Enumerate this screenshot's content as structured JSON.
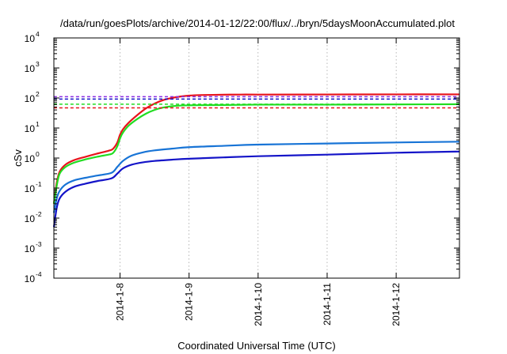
{
  "chart_data": {
    "type": "line",
    "title": "/data/run/goesPlots/archive/2014-01-12/22:00/flux/../bryn/5daysMoonAccumulated.plot",
    "xlabel": "Coordinated Universal Time (UTC)",
    "ylabel": "cSv",
    "y_scale": "log",
    "ylim": [
      0.0001,
      10000
    ],
    "y_ticks": [
      {
        "base": "10",
        "exp": "-4",
        "value": 0.0001
      },
      {
        "base": "10",
        "exp": "-3",
        "value": 0.001
      },
      {
        "base": "10",
        "exp": "-2",
        "value": 0.01
      },
      {
        "base": "10",
        "exp": "-1",
        "value": 0.1
      },
      {
        "base": "10",
        "exp": "0",
        "value": 1
      },
      {
        "base": "10",
        "exp": "1",
        "value": 10
      },
      {
        "base": "10",
        "exp": "2",
        "value": 100
      },
      {
        "base": "10",
        "exp": "3",
        "value": 1000
      },
      {
        "base": "10",
        "exp": "4",
        "value": 10000
      }
    ],
    "xlim": [
      "2014-01-07 01:00",
      "2014-01-12 22:00"
    ],
    "x_ticks": [
      {
        "label": "2014-1-8",
        "value": "2014-01-08 00:00"
      },
      {
        "label": "2014-1-9",
        "value": "2014-01-09 00:00"
      },
      {
        "label": "2014-1-10",
        "value": "2014-01-10 00:00"
      },
      {
        "label": "2014-1-11",
        "value": "2014-01-11 00:00"
      },
      {
        "label": "2014-1-12",
        "value": "2014-01-12 00:00"
      }
    ],
    "grid": true,
    "series": [
      {
        "color": "#e8141c",
        "style": "solid",
        "x": [
          "2014-01-07 01:00",
          "2014-01-07 02:00",
          "2014-01-07 03:00",
          "2014-01-07 05:00",
          "2014-01-07 08:00",
          "2014-01-07 12:00",
          "2014-01-07 16:00",
          "2014-01-07 20:00",
          "2014-01-07 21:30",
          "2014-01-07 23:00",
          "2014-01-08 00:00",
          "2014-01-08 01:00",
          "2014-01-08 03:00",
          "2014-01-08 06:00",
          "2014-01-08 09:00",
          "2014-01-08 12:00",
          "2014-01-08 15:00",
          "2014-01-08 18:00",
          "2014-01-08 21:00",
          "2014-01-09 00:00",
          "2014-01-09 04:00",
          "2014-01-09 10:00",
          "2014-01-09 18:00",
          "2014-01-10 00:00",
          "2014-01-11 00:00",
          "2014-01-12 00:00",
          "2014-01-12 22:00"
        ],
        "y": [
          0.03,
          0.15,
          0.35,
          0.6,
          0.85,
          1.1,
          1.4,
          1.75,
          2.0,
          3.2,
          6.0,
          9.0,
          15,
          27,
          45,
          65,
          85,
          100,
          112,
          120,
          125,
          128,
          130,
          130,
          131,
          132,
          132
        ]
      },
      {
        "color": "#22dd22",
        "style": "solid",
        "x": [
          "2014-01-07 01:00",
          "2014-01-07 02:00",
          "2014-01-07 03:00",
          "2014-01-07 05:00",
          "2014-01-07 08:00",
          "2014-01-07 12:00",
          "2014-01-07 16:00",
          "2014-01-07 20:00",
          "2014-01-07 21:30",
          "2014-01-07 23:00",
          "2014-01-08 00:00",
          "2014-01-08 01:00",
          "2014-01-08 03:00",
          "2014-01-08 06:00",
          "2014-01-08 09:00",
          "2014-01-08 12:00",
          "2014-01-08 15:00",
          "2014-01-08 18:00",
          "2014-01-08 21:00",
          "2014-01-09 00:00",
          "2014-01-09 06:00",
          "2014-01-09 18:00",
          "2014-01-10 00:00",
          "2014-01-11 00:00",
          "2014-01-12 00:00",
          "2014-01-12 22:00"
        ],
        "y": [
          0.03,
          0.12,
          0.3,
          0.5,
          0.7,
          0.9,
          1.1,
          1.3,
          1.45,
          2.4,
          4.5,
          7.0,
          12,
          20,
          30,
          40,
          48,
          53,
          56,
          57,
          58,
          59,
          60,
          60,
          61,
          62
        ]
      },
      {
        "color": "#1874d6",
        "style": "solid",
        "x": [
          "2014-01-07 01:00",
          "2014-01-07 02:00",
          "2014-01-07 03:00",
          "2014-01-07 05:00",
          "2014-01-07 08:00",
          "2014-01-07 12:00",
          "2014-01-07 16:00",
          "2014-01-07 21:00",
          "2014-01-07 23:00",
          "2014-01-08 01:00",
          "2014-01-08 04:00",
          "2014-01-08 08:00",
          "2014-01-08 12:00",
          "2014-01-08 18:00",
          "2014-01-09 00:00",
          "2014-01-09 12:00",
          "2014-01-10 00:00",
          "2014-01-11 00:00",
          "2014-01-12 00:00",
          "2014-01-12 22:00"
        ],
        "y": [
          0.015,
          0.045,
          0.08,
          0.13,
          0.18,
          0.22,
          0.26,
          0.32,
          0.5,
          0.8,
          1.2,
          1.55,
          1.8,
          2.05,
          2.3,
          2.55,
          2.8,
          3.05,
          3.3,
          3.5
        ]
      },
      {
        "color": "#1414c8",
        "style": "solid",
        "x": [
          "2014-01-07 01:00",
          "2014-01-07 02:00",
          "2014-01-07 03:00",
          "2014-01-07 05:00",
          "2014-01-07 08:00",
          "2014-01-07 12:00",
          "2014-01-07 16:00",
          "2014-01-07 21:00",
          "2014-01-07 23:00",
          "2014-01-08 01:00",
          "2014-01-08 04:00",
          "2014-01-08 08:00",
          "2014-01-08 12:00",
          "2014-01-08 18:00",
          "2014-01-09 00:00",
          "2014-01-09 12:00",
          "2014-01-10 00:00",
          "2014-01-11 00:00",
          "2014-01-12 00:00",
          "2014-01-12 22:00"
        ],
        "y": [
          0.005,
          0.022,
          0.045,
          0.075,
          0.11,
          0.14,
          0.17,
          0.21,
          0.3,
          0.45,
          0.6,
          0.72,
          0.8,
          0.88,
          0.95,
          1.05,
          1.15,
          1.3,
          1.5,
          1.65
        ]
      },
      {
        "color": "#8a2be2",
        "style": "dashed",
        "x": [
          "2014-01-07 01:00",
          "2014-01-12 22:00"
        ],
        "y": [
          110,
          110
        ]
      },
      {
        "color": "#1414c8",
        "style": "dashed",
        "x": [
          "2014-01-07 01:00",
          "2014-01-12 22:00"
        ],
        "y": [
          92,
          92
        ]
      },
      {
        "color": "#22dd22",
        "style": "dashed",
        "x": [
          "2014-01-07 01:00",
          "2014-01-12 22:00"
        ],
        "y": [
          62,
          62
        ]
      },
      {
        "color": "#e8141c",
        "style": "dashed",
        "x": [
          "2014-01-07 01:00",
          "2014-01-12 22:00"
        ],
        "y": [
          47,
          47
        ]
      }
    ]
  }
}
